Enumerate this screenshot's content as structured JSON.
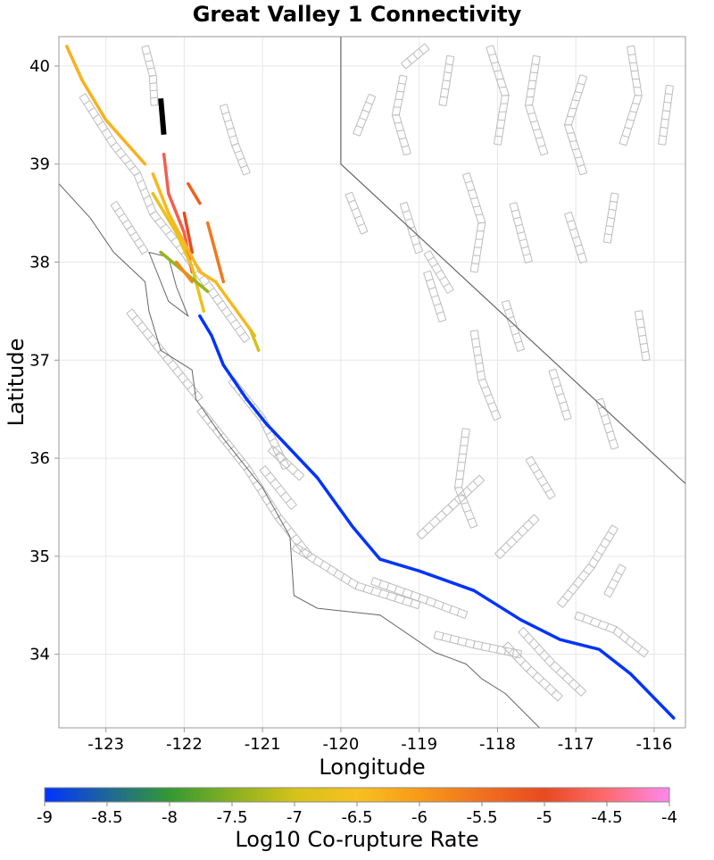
{
  "title": "Great Valley 1 Connectivity",
  "xlabel": "Longitude",
  "ylabel": "Latitude",
  "colorbar": {
    "label": "Log10 Co-rupture Rate",
    "min": -9,
    "max": -4,
    "ticks": [
      "-9",
      "-8.5",
      "-8",
      "-7.5",
      "-7",
      "-6.5",
      "-6",
      "-5.5",
      "-5",
      "-4.5",
      "-4"
    ],
    "stops": [
      {
        "value": -9,
        "color": "#0033ff"
      },
      {
        "value": -8.5,
        "color": "#1f6699"
      },
      {
        "value": -8,
        "color": "#339933"
      },
      {
        "value": -7.5,
        "color": "#88b020"
      },
      {
        "value": -7,
        "color": "#d4c21a"
      },
      {
        "value": -6.5,
        "color": "#f8c020"
      },
      {
        "value": -6,
        "color": "#f89a18"
      },
      {
        "value": -5.5,
        "color": "#f07020"
      },
      {
        "value": -5,
        "color": "#e84a20"
      },
      {
        "value": -4.5,
        "color": "#ff6a70"
      },
      {
        "value": -4,
        "color": "#ff88ee"
      }
    ]
  },
  "map": {
    "xlim": [
      -123.6,
      -115.6
    ],
    "ylim": [
      33.25,
      40.3
    ],
    "xticks": [
      "-123",
      "-122",
      "-121",
      "-120",
      "-119",
      "-118",
      "-117",
      "-116"
    ],
    "yticks": [
      "34",
      "35",
      "36",
      "37",
      "38",
      "39",
      "40"
    ],
    "grid": true,
    "colors": {
      "fault_outline": "#bcbcbc",
      "coastline": "#666666",
      "source_fault": "#000000",
      "grid": "#e6e6e6"
    },
    "source_fault": {
      "name": "Great Valley 1",
      "trace": [
        [
          -122.3,
          39.67
        ],
        [
          -122.26,
          39.3
        ]
      ]
    },
    "colored_faults": [
      {
        "value": -6.3,
        "trace": [
          [
            -123.5,
            40.2
          ],
          [
            -123.3,
            39.85
          ],
          [
            -123.0,
            39.45
          ],
          [
            -122.5,
            39.0
          ]
        ]
      },
      {
        "value": -4.7,
        "trace": [
          [
            -122.26,
            39.1
          ],
          [
            -122.2,
            38.7
          ],
          [
            -122.0,
            38.3
          ],
          [
            -121.9,
            37.9
          ]
        ]
      },
      {
        "value": -5.3,
        "trace": [
          [
            -121.95,
            38.8
          ],
          [
            -121.8,
            38.6
          ]
        ]
      },
      {
        "value": -5.6,
        "trace": [
          [
            -121.7,
            38.4
          ],
          [
            -121.6,
            38.1
          ],
          [
            -121.5,
            37.8
          ]
        ]
      },
      {
        "value": -5.0,
        "trace": [
          [
            -122.0,
            38.5
          ],
          [
            -121.9,
            38.1
          ]
        ]
      },
      {
        "value": -6.4,
        "trace": [
          [
            -122.4,
            38.9
          ],
          [
            -122.2,
            38.5
          ],
          [
            -122.0,
            38.2
          ],
          [
            -121.8,
            37.9
          ],
          [
            -121.6,
            37.8
          ],
          [
            -121.1,
            37.25
          ]
        ]
      },
      {
        "value": -6.7,
        "trace": [
          [
            -122.4,
            38.7
          ],
          [
            -122.1,
            38.3
          ],
          [
            -121.9,
            37.95
          ],
          [
            -121.75,
            37.5
          ]
        ]
      },
      {
        "value": -7.4,
        "trace": [
          [
            -122.3,
            38.1
          ],
          [
            -122.0,
            37.9
          ],
          [
            -121.7,
            37.7
          ]
        ]
      },
      {
        "value": -7.0,
        "trace": [
          [
            -121.15,
            37.3
          ],
          [
            -121.05,
            37.1
          ]
        ]
      },
      {
        "value": -5.8,
        "trace": [
          [
            -122.1,
            38.0
          ],
          [
            -121.9,
            37.8
          ]
        ]
      },
      {
        "value": -9.0,
        "trace": [
          [
            -121.8,
            37.45
          ],
          [
            -121.65,
            37.25
          ],
          [
            -121.5,
            36.95
          ],
          [
            -121.2,
            36.6
          ],
          [
            -120.95,
            36.35
          ],
          [
            -120.3,
            35.8
          ],
          [
            -119.85,
            35.3
          ],
          [
            -119.5,
            34.97
          ],
          [
            -119.0,
            34.85
          ],
          [
            -118.3,
            34.65
          ],
          [
            -117.7,
            34.35
          ],
          [
            -117.2,
            34.15
          ],
          [
            -116.7,
            34.05
          ],
          [
            -116.3,
            33.8
          ],
          [
            -115.75,
            33.35
          ]
        ]
      }
    ],
    "state_border": [
      [
        -120.0,
        40.3
      ],
      [
        -120.0,
        39.0
      ],
      [
        -114.6,
        35.0
      ]
    ],
    "coastline": [
      [
        -123.6,
        38.8
      ],
      [
        -123.2,
        38.45
      ],
      [
        -122.9,
        38.1
      ],
      [
        -122.5,
        37.8
      ],
      [
        -122.45,
        37.5
      ],
      [
        -122.3,
        37.1
      ],
      [
        -121.9,
        36.9
      ],
      [
        -121.85,
        36.6
      ],
      [
        -121.5,
        36.2
      ],
      [
        -121.0,
        35.7
      ],
      [
        -120.65,
        35.2
      ],
      [
        -120.6,
        34.6
      ],
      [
        -120.3,
        34.47
      ],
      [
        -119.5,
        34.4
      ],
      [
        -118.8,
        34.02
      ],
      [
        -118.4,
        33.9
      ],
      [
        -118.2,
        33.75
      ],
      [
        -117.9,
        33.6
      ],
      [
        -117.4,
        33.2
      ]
    ],
    "bay": [
      [
        -122.45,
        38.1
      ],
      [
        -122.2,
        38.05
      ],
      [
        -122.1,
        37.75
      ],
      [
        -121.95,
        37.45
      ],
      [
        -122.2,
        37.6
      ],
      [
        -122.35,
        37.9
      ]
    ],
    "grey_faults": [
      [
        [
          -123.3,
          39.7
        ],
        [
          -122.9,
          39.2
        ],
        [
          -122.6,
          38.9
        ],
        [
          -122.4,
          38.5
        ],
        [
          -122.0,
          38.1
        ],
        [
          -121.6,
          37.65
        ],
        [
          -121.2,
          37.2
        ]
      ],
      [
        [
          -122.5,
          40.2
        ],
        [
          -122.4,
          39.9
        ],
        [
          -122.38,
          39.6
        ]
      ],
      [
        [
          -122.9,
          38.6
        ],
        [
          -122.7,
          38.35
        ],
        [
          -122.5,
          38.1
        ]
      ],
      [
        [
          -121.5,
          39.6
        ],
        [
          -121.35,
          39.2
        ],
        [
          -121.2,
          38.9
        ]
      ],
      [
        [
          -122.7,
          37.5
        ],
        [
          -122.3,
          37.1
        ],
        [
          -121.8,
          36.6
        ]
      ],
      [
        [
          -121.4,
          36.8
        ],
        [
          -121.0,
          36.4
        ],
        [
          -120.7,
          35.9
        ]
      ],
      [
        [
          -121.8,
          36.5
        ],
        [
          -121.2,
          35.9
        ],
        [
          -120.8,
          35.4
        ],
        [
          -120.4,
          35.0
        ]
      ],
      [
        [
          -121.0,
          35.9
        ],
        [
          -120.6,
          35.5
        ]
      ],
      [
        [
          -120.9,
          36.1
        ],
        [
          -120.5,
          35.8
        ]
      ],
      [
        [
          -120.6,
          35.1
        ],
        [
          -119.8,
          34.7
        ],
        [
          -119.0,
          34.5
        ]
      ],
      [
        [
          -119.6,
          34.75
        ],
        [
          -118.9,
          34.55
        ],
        [
          -118.4,
          34.4
        ]
      ],
      [
        [
          -118.8,
          34.2
        ],
        [
          -118.3,
          34.1
        ],
        [
          -117.7,
          34.0
        ]
      ],
      [
        [
          -117.9,
          34.1
        ],
        [
          -117.6,
          33.85
        ],
        [
          -117.2,
          33.55
        ]
      ],
      [
        [
          -117.7,
          34.25
        ],
        [
          -117.3,
          33.9
        ],
        [
          -116.9,
          33.6
        ]
      ],
      [
        [
          -117.0,
          34.4
        ],
        [
          -116.5,
          34.25
        ],
        [
          -116.1,
          34.0
        ]
      ],
      [
        [
          -119.0,
          35.2
        ],
        [
          -118.6,
          35.5
        ],
        [
          -118.2,
          35.8
        ]
      ],
      [
        [
          -118.0,
          35.0
        ],
        [
          -117.5,
          35.4
        ]
      ],
      [
        [
          -117.2,
          34.5
        ],
        [
          -116.8,
          34.9
        ],
        [
          -116.5,
          35.3
        ]
      ],
      [
        [
          -116.6,
          34.6
        ],
        [
          -116.4,
          34.9
        ]
      ],
      [
        [
          -119.2,
          39.9
        ],
        [
          -119.3,
          39.5
        ],
        [
          -119.15,
          39.1
        ]
      ],
      [
        [
          -118.6,
          40.1
        ],
        [
          -118.7,
          39.6
        ]
      ],
      [
        [
          -118.1,
          40.2
        ],
        [
          -117.9,
          39.7
        ],
        [
          -118.0,
          39.2
        ]
      ],
      [
        [
          -117.5,
          40.1
        ],
        [
          -117.6,
          39.6
        ],
        [
          -117.4,
          39.1
        ]
      ],
      [
        [
          -116.9,
          39.9
        ],
        [
          -117.1,
          39.4
        ],
        [
          -116.9,
          38.9
        ]
      ],
      [
        [
          -116.3,
          40.2
        ],
        [
          -116.2,
          39.7
        ],
        [
          -116.4,
          39.2
        ]
      ],
      [
        [
          -115.8,
          39.8
        ],
        [
          -115.9,
          39.2
        ]
      ],
      [
        [
          -119.9,
          38.7
        ],
        [
          -119.7,
          38.3
        ]
      ],
      [
        [
          -119.2,
          38.6
        ],
        [
          -119.0,
          38.1
        ]
      ],
      [
        [
          -118.4,
          38.9
        ],
        [
          -118.2,
          38.4
        ],
        [
          -118.3,
          37.9
        ]
      ],
      [
        [
          -117.8,
          38.6
        ],
        [
          -117.6,
          38.0
        ]
      ],
      [
        [
          -117.1,
          38.5
        ],
        [
          -116.9,
          38.0
        ]
      ],
      [
        [
          -116.5,
          38.7
        ],
        [
          -116.6,
          38.2
        ]
      ],
      [
        [
          -118.9,
          37.9
        ],
        [
          -118.7,
          37.4
        ]
      ],
      [
        [
          -118.3,
          37.3
        ],
        [
          -118.2,
          36.8
        ],
        [
          -118.0,
          36.4
        ]
      ],
      [
        [
          -117.9,
          37.6
        ],
        [
          -117.7,
          37.1
        ]
      ],
      [
        [
          -117.3,
          36.9
        ],
        [
          -117.1,
          36.4
        ]
      ],
      [
        [
          -116.7,
          36.6
        ],
        [
          -116.5,
          36.1
        ]
      ],
      [
        [
          -117.6,
          36.0
        ],
        [
          -117.3,
          35.6
        ]
      ],
      [
        [
          -118.4,
          36.3
        ],
        [
          -118.5,
          35.7
        ],
        [
          -118.3,
          35.3
        ]
      ],
      [
        [
          -119.6,
          39.7
        ],
        [
          -119.8,
          39.3
        ]
      ],
      [
        [
          -118.9,
          38.1
        ],
        [
          -118.6,
          37.7
        ]
      ],
      [
        [
          -116.2,
          37.5
        ],
        [
          -116.1,
          37.0
        ]
      ],
      [
        [
          -119.2,
          40.0
        ],
        [
          -118.9,
          40.2
        ]
      ]
    ]
  }
}
